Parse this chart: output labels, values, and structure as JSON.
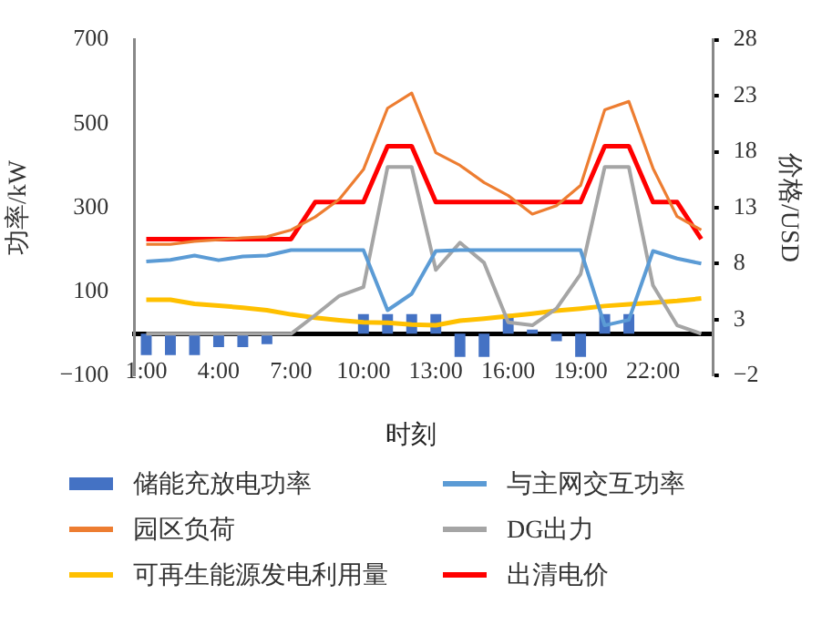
{
  "chart_data": {
    "type": "line",
    "xlabel": "时刻",
    "ylabel": "功率/kW",
    "y2label": "价格/USD",
    "categories": [
      "1:00",
      null,
      null,
      "4:00",
      null,
      null,
      "7:00",
      null,
      null,
      "10:00",
      null,
      null,
      "13:00",
      null,
      null,
      "16:00",
      null,
      null,
      "19:00",
      null,
      null,
      "22:00",
      null,
      null
    ],
    "series": [
      {
        "name": "储能充放电功率",
        "type": "bar",
        "color": "#4472c4",
        "values": [
          -51,
          -51,
          -51,
          -32,
          -32,
          -25,
          0,
          0,
          0,
          47,
          47,
          47,
          47,
          -55,
          -55,
          47,
          10,
          -18,
          -55,
          47,
          47,
          0,
          0,
          0
        ]
      },
      {
        "name": "与主网交互功率",
        "color": "#5b9bd5",
        "values": [
          172,
          176,
          186,
          175,
          184,
          186,
          199,
          199,
          199,
          199,
          56,
          95,
          197,
          199,
          199,
          199,
          199,
          199,
          199,
          20,
          33,
          197,
          179,
          167
        ]
      },
      {
        "name": "园区负荷",
        "color": "#ed7d31",
        "values": [
          213,
          213,
          220,
          224,
          228,
          231,
          247,
          278,
          320,
          391,
          537,
          573,
          431,
          401,
          360,
          329,
          285,
          305,
          353,
          533,
          553,
          394,
          279,
          247
        ]
      },
      {
        "name": "DG出力",
        "color": "#a5a5a5",
        "values": [
          0,
          0,
          0,
          0,
          0,
          0,
          0,
          44,
          90,
          111,
          397,
          397,
          152,
          217,
          169,
          27,
          20,
          60,
          142,
          397,
          397,
          115,
          20,
          0
        ]
      },
      {
        "name": "可再生能源发电利用量",
        "color": "#ffc000",
        "values": [
          81,
          81,
          71,
          67,
          62,
          56,
          46,
          38,
          32,
          27,
          26,
          22,
          20,
          31,
          36,
          42,
          48,
          55,
          60,
          66,
          70,
          74,
          78,
          84
        ]
      },
      {
        "name": "出清电价",
        "axis": "y2",
        "color": "#ff0000",
        "values": [
          10.2,
          10.2,
          10.2,
          10.2,
          10.2,
          10.2,
          10.2,
          13.5,
          13.5,
          13.5,
          18.5,
          18.5,
          13.5,
          13.5,
          13.5,
          13.5,
          13.5,
          13.5,
          13.5,
          18.5,
          18.5,
          13.5,
          13.5,
          10.2
        ]
      }
    ],
    "ylim": [
      -100,
      700
    ],
    "yticks": [
      -100,
      100,
      300,
      500,
      700
    ],
    "y2lim": [
      -2,
      28
    ],
    "y2ticks": [
      -2,
      3,
      8,
      13,
      18,
      23,
      28
    ],
    "grid": false,
    "legend": "bottom",
    "marker": "none",
    "line_style": "solid"
  }
}
